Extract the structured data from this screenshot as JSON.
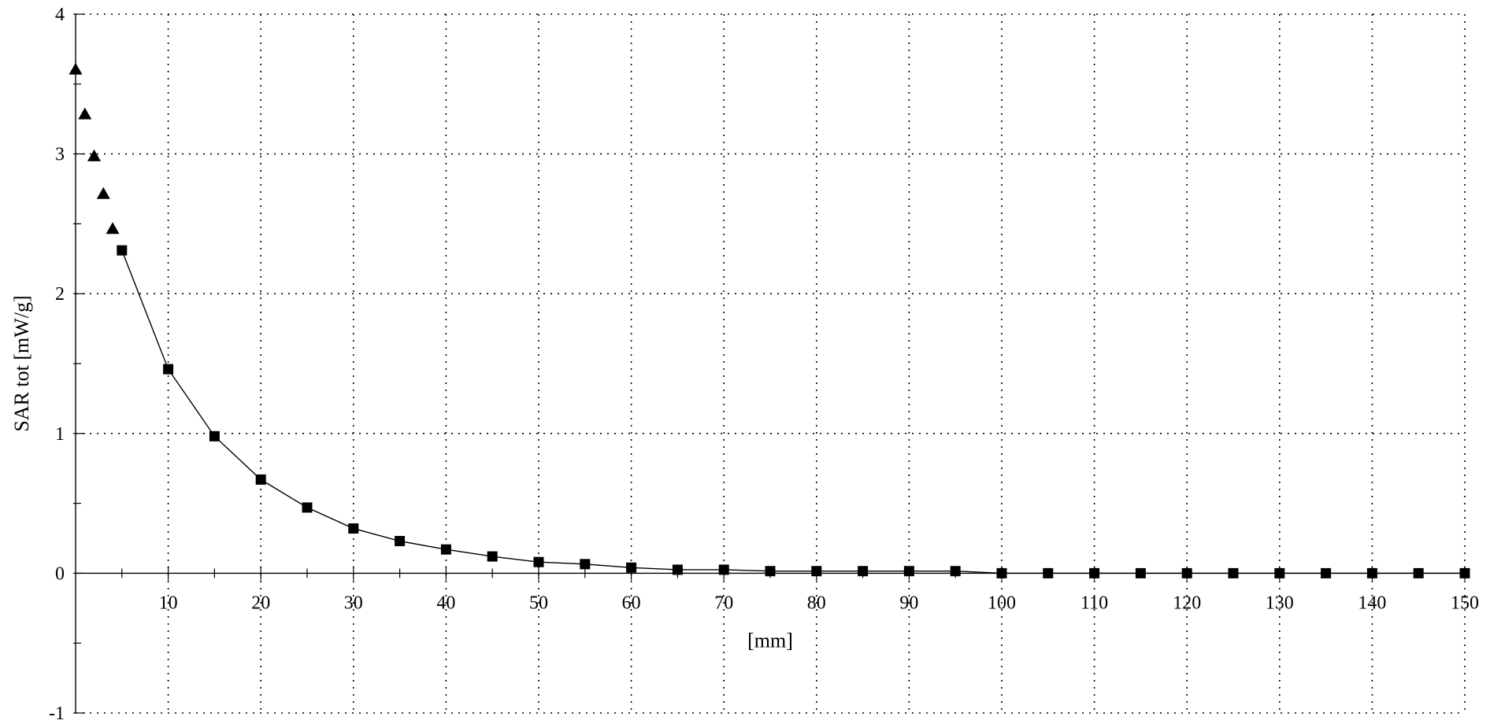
{
  "chart_data": {
    "type": "scatter",
    "xlabel": "[mm]",
    "ylabel": "SAR tot [mW/g]",
    "xlim": [
      0,
      150
    ],
    "ylim": [
      -1,
      4
    ],
    "grid": true,
    "x_ticks": [
      10,
      20,
      30,
      40,
      50,
      60,
      70,
      80,
      90,
      100,
      110,
      120,
      130,
      140,
      150
    ],
    "y_ticks": [
      -1,
      0,
      1,
      2,
      3,
      4
    ],
    "colors": {
      "series": "#000000",
      "grid": "#000000"
    },
    "series": [
      {
        "marker": "triangle",
        "line": false,
        "x": [
          0,
          1,
          2,
          3,
          4
        ],
        "y": [
          3.6,
          3.28,
          2.98,
          2.71,
          2.46
        ]
      },
      {
        "marker": "square",
        "line": true,
        "x": [
          5,
          10,
          15,
          20,
          25,
          30,
          35,
          40,
          45,
          50,
          55,
          60,
          65,
          70,
          75,
          80,
          85,
          90,
          95,
          100,
          105,
          110,
          115,
          120,
          125,
          130,
          135,
          140,
          145,
          150
        ],
        "y": [
          2.31,
          1.46,
          0.98,
          0.67,
          0.47,
          0.32,
          0.23,
          0.17,
          0.12,
          0.08,
          0.065,
          0.04,
          0.025,
          0.025,
          0.015,
          0.015,
          0.015,
          0.015,
          0.015,
          0.0,
          0.0,
          0.0,
          0.0,
          0.0,
          0.0,
          0.0,
          0.0,
          0.0,
          0.0,
          0.0
        ]
      }
    ]
  }
}
